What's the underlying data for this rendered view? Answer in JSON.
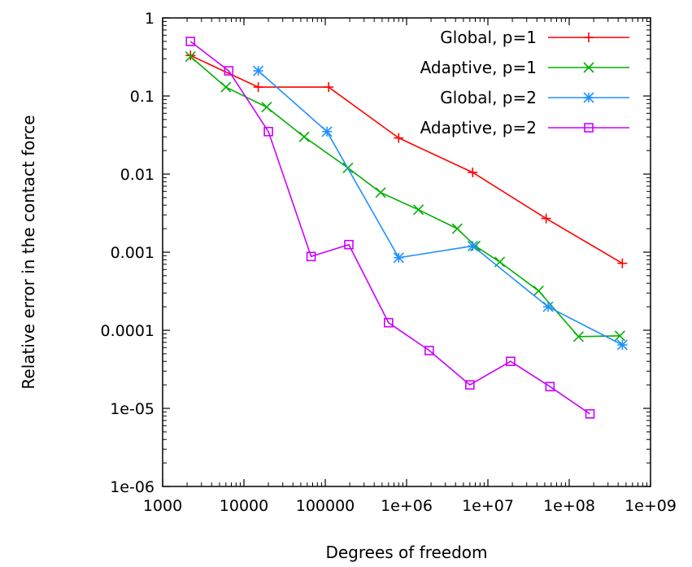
{
  "chart_data": {
    "type": "line",
    "title": "",
    "xlabel": "Degrees of freedom",
    "ylabel": "Relative error in the contact force",
    "xscale": "log",
    "yscale": "log",
    "xlim": [
      1000,
      1000000000
    ],
    "ylim": [
      1e-06,
      1
    ],
    "x_ticks": [
      {
        "value": 1000,
        "label": "1000"
      },
      {
        "value": 10000,
        "label": "10000"
      },
      {
        "value": 100000,
        "label": "100000"
      },
      {
        "value": 1000000,
        "label": "1e+06"
      },
      {
        "value": 10000000,
        "label": "1e+07"
      },
      {
        "value": 100000000,
        "label": "1e+08"
      },
      {
        "value": 1000000000,
        "label": "1e+09"
      }
    ],
    "y_ticks": [
      {
        "value": 1,
        "label": "1"
      },
      {
        "value": 0.1,
        "label": "0.1"
      },
      {
        "value": 0.01,
        "label": "0.01"
      },
      {
        "value": 0.001,
        "label": "0.001"
      },
      {
        "value": 0.0001,
        "label": "0.0001"
      },
      {
        "value": 1e-05,
        "label": "1e-05"
      },
      {
        "value": 1e-06,
        "label": "1e-06"
      }
    ],
    "grid": false,
    "legend_position": "top-right",
    "series": [
      {
        "name": "Global, p=1",
        "color": "#ff0000",
        "marker": "plus",
        "x": [
          2200,
          15000,
          110000,
          800000,
          6500000,
          52000000,
          450000000
        ],
        "y": [
          0.33,
          0.13,
          0.13,
          0.029,
          0.0105,
          0.0027,
          0.00072
        ]
      },
      {
        "name": "Adaptive, p=1",
        "color": "#00b000",
        "marker": "x",
        "x": [
          2200,
          6000,
          19000,
          55000,
          190000,
          480000,
          1400000,
          4200000,
          7000000,
          14000000,
          42000000,
          130000000,
          420000000
        ],
        "y": [
          0.32,
          0.13,
          0.072,
          0.03,
          0.012,
          0.0058,
          0.0035,
          0.002,
          0.0012,
          0.00075,
          0.00032,
          8.3e-05,
          8.5e-05
        ]
      },
      {
        "name": "Global, p=2",
        "color": "#1e90ff",
        "marker": "star",
        "x": [
          15000,
          105000,
          800000,
          6500000,
          55000000,
          450000000
        ],
        "y": [
          0.21,
          0.035,
          0.00085,
          0.0012,
          0.0002,
          6.5e-05
        ]
      },
      {
        "name": "Adaptive, p=2",
        "color": "#cc00ff",
        "marker": "square",
        "x": [
          2200,
          6500,
          20000,
          67000,
          195000,
          600000,
          1900000,
          6000000,
          19000000,
          58000000,
          180000000
        ],
        "y": [
          0.5,
          0.21,
          0.035,
          0.00088,
          0.00125,
          0.000125,
          5.5e-05,
          2e-05,
          4e-05,
          1.9e-05,
          8.5e-06
        ]
      }
    ]
  }
}
